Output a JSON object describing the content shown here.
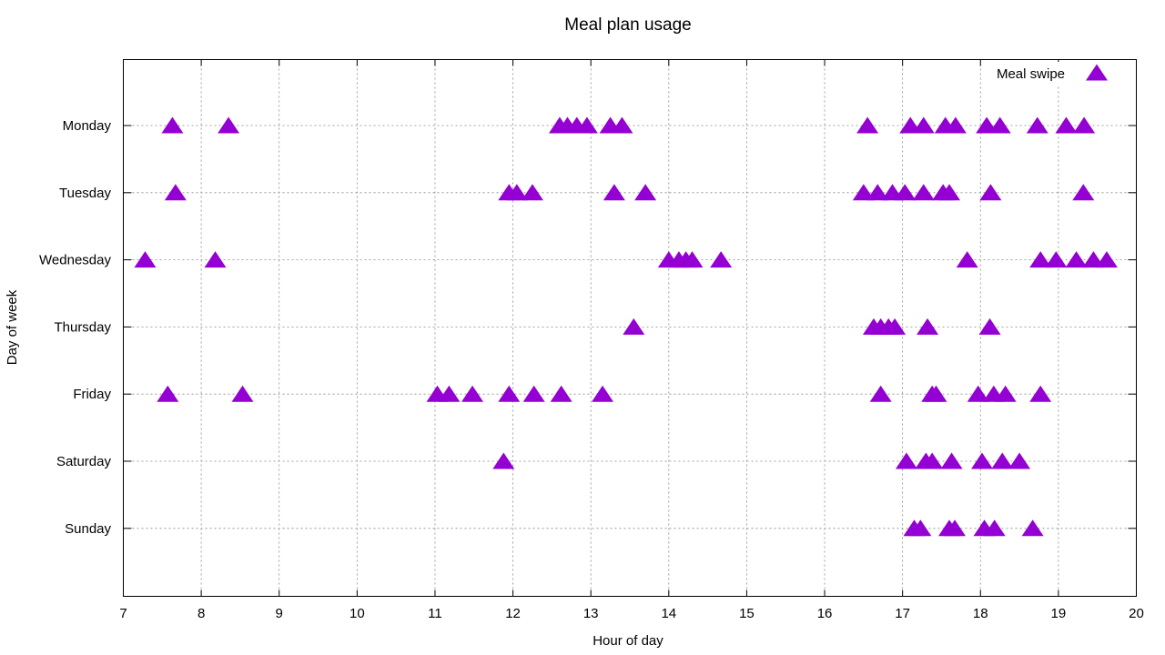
{
  "chart_data": {
    "type": "scatter",
    "title": "Meal plan usage",
    "xlabel": "Hour of day",
    "ylabel": "Day of week",
    "xlim": [
      7,
      20
    ],
    "xticks": [
      7,
      8,
      9,
      10,
      11,
      12,
      13,
      14,
      15,
      16,
      17,
      18,
      19,
      20
    ],
    "categories": [
      "Monday",
      "Tuesday",
      "Wednesday",
      "Thursday",
      "Friday",
      "Saturday",
      "Sunday"
    ],
    "grid": true,
    "legend_position": "top-right",
    "marker": "triangle",
    "series": [
      {
        "name": "Meal swipe",
        "color": "#9400d3",
        "points": [
          {
            "day": "Monday",
            "x": 7.63
          },
          {
            "day": "Monday",
            "x": 8.35
          },
          {
            "day": "Monday",
            "x": 12.6
          },
          {
            "day": "Monday",
            "x": 12.7
          },
          {
            "day": "Monday",
            "x": 12.82
          },
          {
            "day": "Monday",
            "x": 12.95
          },
          {
            "day": "Monday",
            "x": 13.25
          },
          {
            "day": "Monday",
            "x": 13.4
          },
          {
            "day": "Monday",
            "x": 16.55
          },
          {
            "day": "Monday",
            "x": 17.1
          },
          {
            "day": "Monday",
            "x": 17.27
          },
          {
            "day": "Monday",
            "x": 17.55
          },
          {
            "day": "Monday",
            "x": 17.68
          },
          {
            "day": "Monday",
            "x": 18.08
          },
          {
            "day": "Monday",
            "x": 18.25
          },
          {
            "day": "Monday",
            "x": 18.73
          },
          {
            "day": "Monday",
            "x": 19.1
          },
          {
            "day": "Monday",
            "x": 19.33
          },
          {
            "day": "Tuesday",
            "x": 7.67
          },
          {
            "day": "Tuesday",
            "x": 11.95
          },
          {
            "day": "Tuesday",
            "x": 12.05
          },
          {
            "day": "Tuesday",
            "x": 12.25
          },
          {
            "day": "Tuesday",
            "x": 13.3
          },
          {
            "day": "Tuesday",
            "x": 13.7
          },
          {
            "day": "Tuesday",
            "x": 16.5
          },
          {
            "day": "Tuesday",
            "x": 16.68
          },
          {
            "day": "Tuesday",
            "x": 16.87
          },
          {
            "day": "Tuesday",
            "x": 17.03
          },
          {
            "day": "Tuesday",
            "x": 17.27
          },
          {
            "day": "Tuesday",
            "x": 17.52
          },
          {
            "day": "Tuesday",
            "x": 17.6
          },
          {
            "day": "Tuesday",
            "x": 18.13
          },
          {
            "day": "Tuesday",
            "x": 19.32
          },
          {
            "day": "Wednesday",
            "x": 7.28
          },
          {
            "day": "Wednesday",
            "x": 8.18
          },
          {
            "day": "Wednesday",
            "x": 14.0
          },
          {
            "day": "Wednesday",
            "x": 14.13
          },
          {
            "day": "Wednesday",
            "x": 14.22
          },
          {
            "day": "Wednesday",
            "x": 14.3
          },
          {
            "day": "Wednesday",
            "x": 14.67
          },
          {
            "day": "Wednesday",
            "x": 17.83
          },
          {
            "day": "Wednesday",
            "x": 18.77
          },
          {
            "day": "Wednesday",
            "x": 18.97
          },
          {
            "day": "Wednesday",
            "x": 19.23
          },
          {
            "day": "Wednesday",
            "x": 19.45
          },
          {
            "day": "Wednesday",
            "x": 19.62
          },
          {
            "day": "Thursday",
            "x": 13.55
          },
          {
            "day": "Thursday",
            "x": 16.63
          },
          {
            "day": "Thursday",
            "x": 16.72
          },
          {
            "day": "Thursday",
            "x": 16.82
          },
          {
            "day": "Thursday",
            "x": 16.9
          },
          {
            "day": "Thursday",
            "x": 17.32
          },
          {
            "day": "Thursday",
            "x": 18.12
          },
          {
            "day": "Friday",
            "x": 7.57
          },
          {
            "day": "Friday",
            "x": 8.53
          },
          {
            "day": "Friday",
            "x": 11.03
          },
          {
            "day": "Friday",
            "x": 11.18
          },
          {
            "day": "Friday",
            "x": 11.48
          },
          {
            "day": "Friday",
            "x": 11.95
          },
          {
            "day": "Friday",
            "x": 12.27
          },
          {
            "day": "Friday",
            "x": 12.62
          },
          {
            "day": "Friday",
            "x": 13.15
          },
          {
            "day": "Friday",
            "x": 16.72
          },
          {
            "day": "Friday",
            "x": 17.38
          },
          {
            "day": "Friday",
            "x": 17.43
          },
          {
            "day": "Friday",
            "x": 17.97
          },
          {
            "day": "Friday",
            "x": 18.17
          },
          {
            "day": "Friday",
            "x": 18.32
          },
          {
            "day": "Friday",
            "x": 18.77
          },
          {
            "day": "Saturday",
            "x": 11.88
          },
          {
            "day": "Saturday",
            "x": 17.05
          },
          {
            "day": "Saturday",
            "x": 17.3
          },
          {
            "day": "Saturday",
            "x": 17.38
          },
          {
            "day": "Saturday",
            "x": 17.63
          },
          {
            "day": "Saturday",
            "x": 18.02
          },
          {
            "day": "Saturday",
            "x": 18.28
          },
          {
            "day": "Saturday",
            "x": 18.5
          },
          {
            "day": "Sunday",
            "x": 17.15
          },
          {
            "day": "Sunday",
            "x": 17.23
          },
          {
            "day": "Sunday",
            "x": 17.6
          },
          {
            "day": "Sunday",
            "x": 17.67
          },
          {
            "day": "Sunday",
            "x": 18.05
          },
          {
            "day": "Sunday",
            "x": 18.18
          },
          {
            "day": "Sunday",
            "x": 18.67
          }
        ]
      }
    ]
  }
}
